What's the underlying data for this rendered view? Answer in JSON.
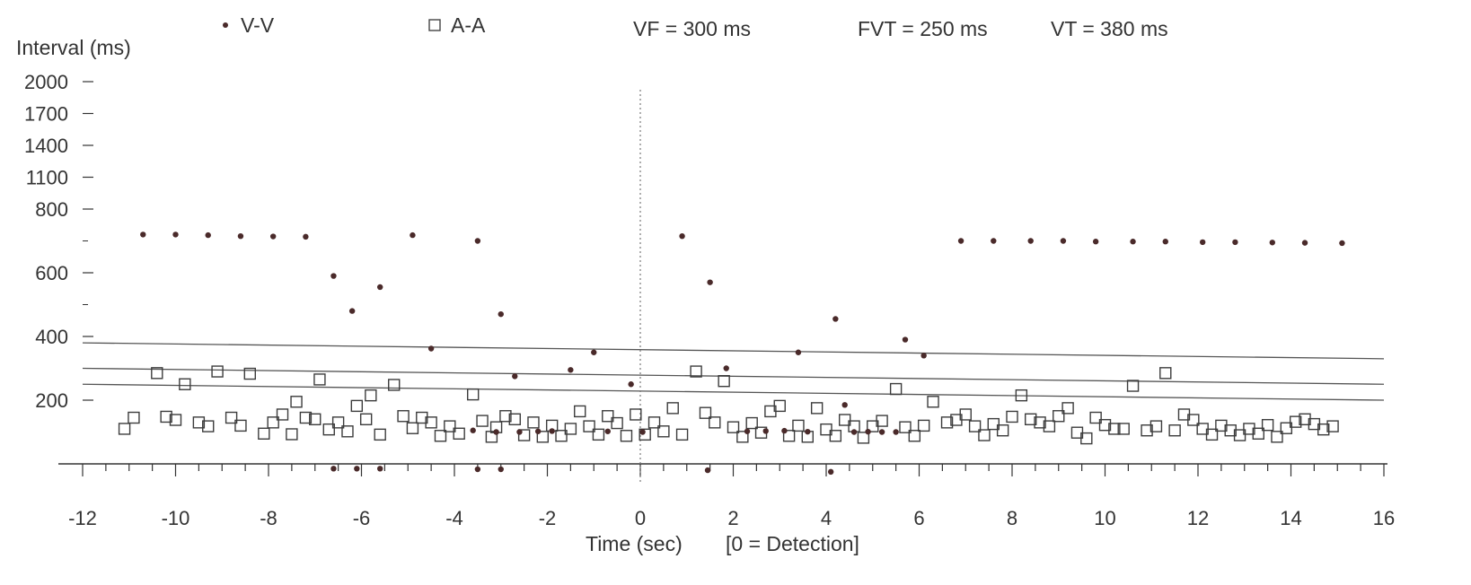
{
  "chart_data": {
    "type": "scatter",
    "xlabel": "Time (sec)",
    "xlabel_note": "[0 = Detection]",
    "ylabel": "Interval (ms)",
    "xlim": [
      -12,
      16
    ],
    "x_ticks": [
      -12,
      -10,
      -8,
      -6,
      -4,
      -2,
      0,
      2,
      4,
      6,
      8,
      10,
      12,
      14,
      16
    ],
    "y_ticks": [
      200,
      400,
      600,
      800,
      1100,
      1400,
      1700,
      2000
    ],
    "y_axis": "piecewise: linear 0-800 ms, compressed 800-2000 ms",
    "grid": false,
    "legend_position": "top",
    "legend": [
      {
        "marker": "•",
        "label": "V-V"
      },
      {
        "marker": "□",
        "label": "A-A"
      }
    ],
    "annotations": [
      "VF = 300 ms",
      "FVT = 250 ms",
      "VT = 380 ms"
    ],
    "detection_marker_x": 0,
    "thresholds": [
      {
        "name": "VT",
        "start": [
          -12,
          380
        ],
        "end": [
          16,
          330
        ]
      },
      {
        "name": "VF",
        "start": [
          -12,
          300
        ],
        "end": [
          16,
          250
        ]
      },
      {
        "name": "FVT",
        "start": [
          -12,
          250
        ],
        "end": [
          16,
          200
        ]
      }
    ],
    "series": [
      {
        "name": "V-V",
        "marker": "dot",
        "points": [
          [
            -10.7,
            720
          ],
          [
            -10,
            720
          ],
          [
            -9.3,
            718
          ],
          [
            -8.6,
            715
          ],
          [
            -7.9,
            714
          ],
          [
            -7.2,
            713
          ],
          [
            -6.6,
            590
          ],
          [
            -6.2,
            480
          ],
          [
            -5.6,
            555
          ],
          [
            -4.9,
            718
          ],
          [
            -4.5,
            362
          ],
          [
            -3.5,
            700
          ],
          [
            -3.0,
            470
          ],
          [
            -2.7,
            275
          ],
          [
            -1.5,
            295
          ],
          [
            -1.0,
            350
          ],
          [
            -0.2,
            250
          ],
          [
            0.9,
            715
          ],
          [
            1.5,
            570
          ],
          [
            1.85,
            300
          ],
          [
            3.4,
            350
          ],
          [
            4.2,
            455
          ],
          [
            4.4,
            185
          ],
          [
            5.7,
            390
          ],
          [
            6.1,
            340
          ],
          [
            6.9,
            700
          ],
          [
            7.6,
            700
          ],
          [
            8.4,
            700
          ],
          [
            9.1,
            700
          ],
          [
            9.8,
            698
          ],
          [
            10.6,
            698
          ],
          [
            11.3,
            698
          ],
          [
            12.1,
            696
          ],
          [
            12.8,
            696
          ],
          [
            13.6,
            695
          ],
          [
            14.3,
            694
          ],
          [
            15.1,
            693
          ],
          [
            -3.6,
            105
          ],
          [
            -3.1,
            100
          ],
          [
            -2.6,
            100
          ],
          [
            -2.2,
            102
          ],
          [
            -1.9,
            103
          ],
          [
            -0.7,
            102
          ],
          [
            0.05,
            100
          ],
          [
            2.3,
            102
          ],
          [
            2.7,
            103
          ],
          [
            3.1,
            104
          ],
          [
            3.6,
            101
          ],
          [
            4.6,
            100
          ],
          [
            4.9,
            101
          ],
          [
            5.2,
            100
          ],
          [
            5.5,
            100
          ],
          [
            -6.6,
            -15
          ],
          [
            -6.1,
            -15
          ],
          [
            -5.6,
            -15
          ],
          [
            -3.5,
            -17
          ],
          [
            -3.0,
            -17
          ],
          [
            1.45,
            -20
          ],
          [
            4.1,
            -25
          ]
        ]
      },
      {
        "name": "A-A",
        "marker": "square",
        "points": [
          [
            -11.1,
            110
          ],
          [
            -10.9,
            145
          ],
          [
            -10.4,
            285
          ],
          [
            -10.2,
            148
          ],
          [
            -10.0,
            138
          ],
          [
            -9.8,
            250
          ],
          [
            -9.5,
            130
          ],
          [
            -9.3,
            118
          ],
          [
            -9.1,
            290
          ],
          [
            -8.8,
            145
          ],
          [
            -8.6,
            120
          ],
          [
            -8.4,
            283
          ],
          [
            -8.1,
            95
          ],
          [
            -7.9,
            130
          ],
          [
            -7.7,
            155
          ],
          [
            -7.5,
            93
          ],
          [
            -7.4,
            195
          ],
          [
            -7.2,
            145
          ],
          [
            -7.0,
            140
          ],
          [
            -6.9,
            265
          ],
          [
            -6.7,
            108
          ],
          [
            -6.5,
            130
          ],
          [
            -6.3,
            102
          ],
          [
            -6.1,
            182
          ],
          [
            -5.9,
            140
          ],
          [
            -5.8,
            215
          ],
          [
            -5.6,
            92
          ],
          [
            -5.3,
            248
          ],
          [
            -5.1,
            150
          ],
          [
            -4.9,
            112
          ],
          [
            -4.7,
            145
          ],
          [
            -4.5,
            130
          ],
          [
            -4.3,
            88
          ],
          [
            -4.1,
            118
          ],
          [
            -3.9,
            95
          ],
          [
            -3.6,
            218
          ],
          [
            -3.4,
            135
          ],
          [
            -3.2,
            85
          ],
          [
            -3.1,
            115
          ],
          [
            -2.9,
            150
          ],
          [
            -2.7,
            140
          ],
          [
            -2.5,
            90
          ],
          [
            -2.3,
            130
          ],
          [
            -2.1,
            85
          ],
          [
            -1.9,
            120
          ],
          [
            -1.7,
            88
          ],
          [
            -1.5,
            110
          ],
          [
            -1.3,
            165
          ],
          [
            -1.1,
            118
          ],
          [
            -0.9,
            92
          ],
          [
            -0.7,
            150
          ],
          [
            -0.5,
            128
          ],
          [
            -0.3,
            88
          ],
          [
            -0.1,
            155
          ],
          [
            0.1,
            92
          ],
          [
            0.3,
            130
          ],
          [
            0.5,
            102
          ],
          [
            0.7,
            175
          ],
          [
            0.9,
            92
          ],
          [
            1.2,
            290
          ],
          [
            1.4,
            160
          ],
          [
            1.6,
            130
          ],
          [
            1.8,
            260
          ],
          [
            2.0,
            115
          ],
          [
            2.2,
            85
          ],
          [
            2.4,
            128
          ],
          [
            2.6,
            98
          ],
          [
            2.8,
            165
          ],
          [
            3.0,
            182
          ],
          [
            3.2,
            88
          ],
          [
            3.4,
            120
          ],
          [
            3.6,
            85
          ],
          [
            3.8,
            175
          ],
          [
            4.0,
            108
          ],
          [
            4.2,
            88
          ],
          [
            4.4,
            138
          ],
          [
            4.6,
            118
          ],
          [
            4.8,
            82
          ],
          [
            5.0,
            118
          ],
          [
            5.2,
            135
          ],
          [
            5.5,
            235
          ],
          [
            5.7,
            115
          ],
          [
            5.9,
            88
          ],
          [
            6.1,
            120
          ],
          [
            6.3,
            195
          ],
          [
            6.6,
            130
          ],
          [
            6.8,
            138
          ],
          [
            7.0,
            155
          ],
          [
            7.2,
            118
          ],
          [
            7.4,
            90
          ],
          [
            7.6,
            125
          ],
          [
            7.8,
            105
          ],
          [
            8.0,
            148
          ],
          [
            8.2,
            215
          ],
          [
            8.4,
            140
          ],
          [
            8.6,
            130
          ],
          [
            8.8,
            118
          ],
          [
            9.0,
            150
          ],
          [
            9.2,
            175
          ],
          [
            9.4,
            98
          ],
          [
            9.6,
            80
          ],
          [
            9.8,
            145
          ],
          [
            10.0,
            122
          ],
          [
            10.2,
            110
          ],
          [
            10.4,
            110
          ],
          [
            10.6,
            245
          ],
          [
            10.9,
            105
          ],
          [
            11.1,
            118
          ],
          [
            11.3,
            285
          ],
          [
            11.5,
            105
          ],
          [
            11.7,
            155
          ],
          [
            11.9,
            138
          ],
          [
            12.1,
            110
          ],
          [
            12.3,
            92
          ],
          [
            12.5,
            120
          ],
          [
            12.7,
            105
          ],
          [
            12.9,
            90
          ],
          [
            13.1,
            110
          ],
          [
            13.3,
            95
          ],
          [
            13.5,
            122
          ],
          [
            13.7,
            85
          ],
          [
            13.9,
            112
          ],
          [
            14.1,
            132
          ],
          [
            14.3,
            140
          ],
          [
            14.5,
            125
          ],
          [
            14.7,
            108
          ],
          [
            14.9,
            118
          ]
        ]
      }
    ]
  },
  "colors": {
    "markers": "#4a2a2a",
    "axis": "#333333",
    "threshold": "#555555",
    "detection_line": "#777777"
  }
}
